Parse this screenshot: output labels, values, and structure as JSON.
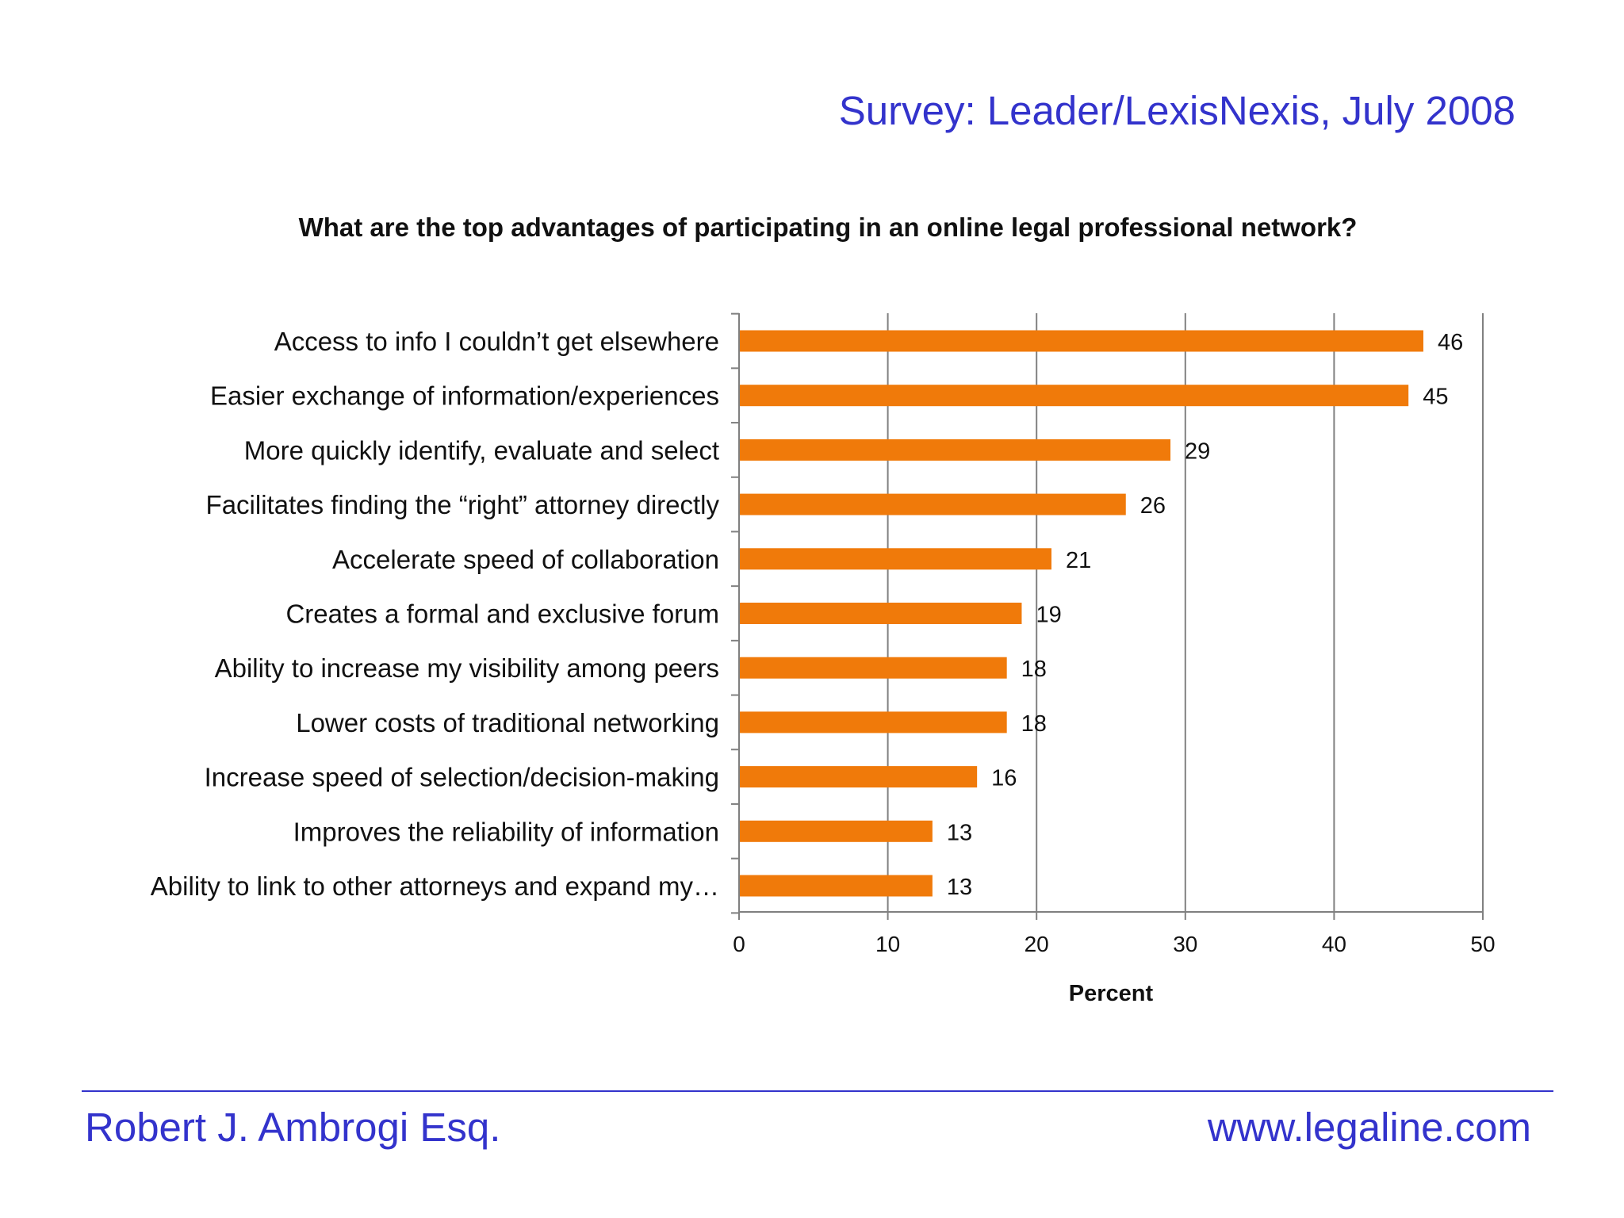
{
  "header": {
    "survey_source": "Survey: Leader/LexisNexis, July 2008"
  },
  "footer": {
    "author": "Robert J. Ambrogi Esq.",
    "website": "www.legaline.com"
  },
  "colors": {
    "accent": "#3333cc",
    "bar": "#f07a0a",
    "grid": "#808080"
  },
  "chart_data": {
    "type": "bar",
    "orientation": "horizontal",
    "title": "What are the top advantages of participating in an online legal professional network?",
    "xlabel": "Percent",
    "ylabel": "",
    "xlim": [
      0,
      50
    ],
    "x_ticks": [
      0,
      10,
      20,
      30,
      40,
      50
    ],
    "grid": "vertical",
    "data_labels": true,
    "categories": [
      "Access to info I couldn’t get elsewhere",
      "Easier exchange of information/experiences",
      "More quickly identify, evaluate and select",
      "Facilitates finding the “right” attorney directly",
      "Accelerate speed of collaboration",
      "Creates a formal and exclusive forum",
      "Ability to increase my visibility among peers",
      "Lower costs of traditional networking",
      "Increase speed of selection/decision-making",
      "Improves the reliability of information",
      "Ability to link to other attorneys and expand my…"
    ],
    "values": [
      46,
      45,
      29,
      26,
      21,
      19,
      18,
      18,
      16,
      13,
      13
    ]
  }
}
